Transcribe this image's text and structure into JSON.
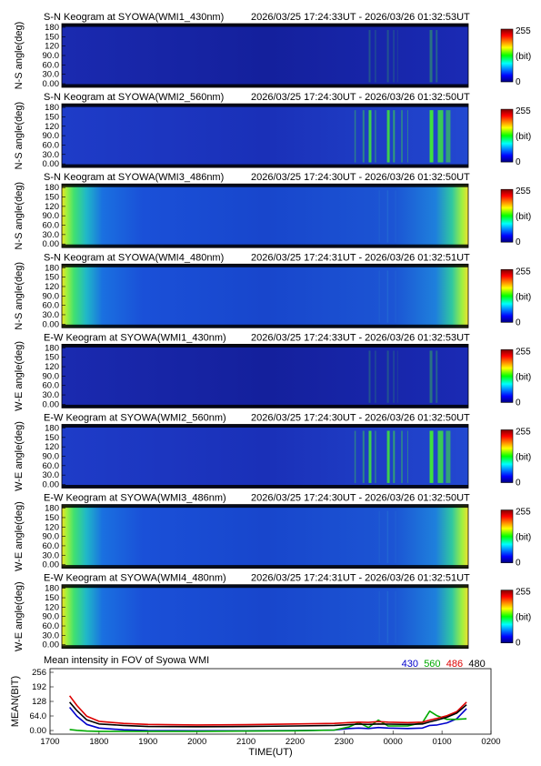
{
  "panels": [
    {
      "title": "S-N Keogram at SYOWA(WMI1_430nm)",
      "time_range": "2026/03/25 17:24:33UT - 2026/03/26 01:32:53UT",
      "ylabel": "N-S angle(deg)",
      "style": "dim"
    },
    {
      "title": "S-N Keogram at SYOWA(WMI2_560nm)",
      "time_range": "2026/03/25 17:24:30UT - 2026/03/26 01:32:50UT",
      "ylabel": "N-S angle(deg)",
      "style": "aurora"
    },
    {
      "title": "S-N Keogram at SYOWA(WMI3_486nm)",
      "time_range": "2026/03/25 17:24:30UT - 2026/03/26 01:32:50UT",
      "ylabel": "N-S angle(deg)",
      "style": "twilight"
    },
    {
      "title": "S-N Keogram at SYOWA(WMI4_480nm)",
      "time_range": "2026/03/25 17:24:31UT - 2026/03/26 01:32:51UT",
      "ylabel": "N-S angle(deg)",
      "style": "twilight"
    },
    {
      "title": "E-W Keogram at SYOWA(WMI1_430nm)",
      "time_range": "2026/03/25 17:24:33UT - 2026/03/26 01:32:53UT",
      "ylabel": "W-E angle(deg)",
      "style": "dim"
    },
    {
      "title": "E-W Keogram at SYOWA(WMI2_560nm)",
      "time_range": "2026/03/25 17:24:30UT - 2026/03/26 01:32:50UT",
      "ylabel": "W-E angle(deg)",
      "style": "aurora"
    },
    {
      "title": "E-W Keogram at SYOWA(WMI3_486nm)",
      "time_range": "2026/03/25 17:24:30UT - 2026/03/26 01:32:50UT",
      "ylabel": "W-E angle(deg)",
      "style": "twilight"
    },
    {
      "title": "E-W Keogram at SYOWA(WMI4_480nm)",
      "time_range": "2026/03/25 17:24:31UT - 2026/03/26 01:32:51UT",
      "ylabel": "W-E angle(deg)",
      "style": "twilight"
    }
  ],
  "angle_ticks": [
    "180",
    "150",
    "120",
    "90.0",
    "60.0",
    "30.0",
    "0.00"
  ],
  "colorbar": {
    "max": "255",
    "unit": "(bit)",
    "min": "0"
  },
  "chart_data": {
    "type": "line",
    "title": "Mean intensity in FOV of Syowa WMI",
    "xlabel": "TIME(UT)",
    "ylabel": "MEAN(BIT)",
    "x_ticks": [
      "1700",
      "1800",
      "1900",
      "2000",
      "2100",
      "2200",
      "2300",
      "0000",
      "0100",
      "0200"
    ],
    "y_ticks": [
      "256",
      "192",
      "128",
      "64.0",
      "0.00"
    ],
    "ylim": [
      0,
      256
    ],
    "xlim_hours": [
      17,
      26
    ],
    "x_hours": [
      17.4,
      17.55,
      17.75,
      18.0,
      18.5,
      19.0,
      20.0,
      21.0,
      22.0,
      22.8,
      23.1,
      23.3,
      23.5,
      23.7,
      23.9,
      24.3,
      24.6,
      24.75,
      24.9,
      25.1,
      25.3,
      25.5
    ],
    "series": [
      {
        "name": "430",
        "color": "#0000cc",
        "values": [
          105,
          70,
          38,
          24,
          17,
          14,
          13,
          13,
          14,
          16,
          22,
          24,
          22,
          26,
          24,
          22,
          24,
          34,
          36,
          44,
          60,
          100
        ]
      },
      {
        "name": "560",
        "color": "#00aa00",
        "values": [
          18,
          15,
          12,
          11,
          11,
          11,
          11,
          12,
          13,
          16,
          28,
          45,
          26,
          55,
          32,
          32,
          45,
          90,
          72,
          58,
          58,
          60
        ]
      },
      {
        "name": "486",
        "color": "#dd0000",
        "values": [
          150,
          112,
          70,
          50,
          42,
          38,
          36,
          37,
          40,
          42,
          45,
          47,
          46,
          49,
          47,
          45,
          47,
          55,
          62,
          72,
          88,
          125
        ]
      },
      {
        "name": "480",
        "color": "#000000",
        "values": [
          125,
          92,
          56,
          40,
          34,
          30,
          29,
          30,
          32,
          34,
          37,
          39,
          38,
          40,
          39,
          38,
          40,
          48,
          55,
          66,
          82,
          115
        ]
      }
    ]
  }
}
